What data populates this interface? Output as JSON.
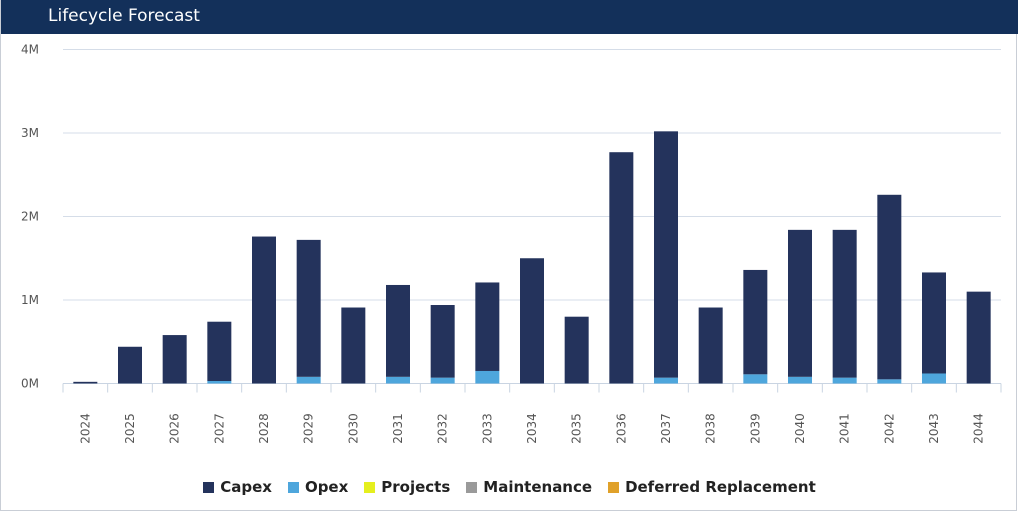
{
  "header": {
    "title": "Lifecycle Forecast"
  },
  "colors": {
    "Capex": "#24335c",
    "Opex": "#4ea6dc",
    "Projects": "#e5ef1e",
    "Maintenance": "#9a9a9a",
    "Deferred Replacement": "#e0a12a"
  },
  "chart_data": {
    "type": "bar",
    "stacked": true,
    "categories": [
      "2024",
      "2025",
      "2026",
      "2027",
      "2028",
      "2029",
      "2030",
      "2031",
      "2032",
      "2033",
      "2034",
      "2035",
      "2036",
      "2037",
      "2038",
      "2039",
      "2040",
      "2041",
      "2042",
      "2043",
      "2044"
    ],
    "series": [
      {
        "name": "Capex",
        "values": [
          0.02,
          0.44,
          0.58,
          0.71,
          1.76,
          1.64,
          0.91,
          1.1,
          0.87,
          1.06,
          1.5,
          0.8,
          2.77,
          2.95,
          0.91,
          1.25,
          1.76,
          1.77,
          2.21,
          1.21,
          1.1
        ]
      },
      {
        "name": "Opex",
        "values": [
          0,
          0,
          0,
          0.03,
          0,
          0.08,
          0,
          0.08,
          0.07,
          0.15,
          0,
          0,
          0,
          0.07,
          0,
          0.11,
          0.08,
          0.07,
          0.05,
          0.12,
          0
        ]
      },
      {
        "name": "Projects",
        "values": [
          0,
          0,
          0,
          0,
          0,
          0,
          0,
          0,
          0,
          0,
          0,
          0,
          0,
          0,
          0,
          0,
          0,
          0,
          0,
          0,
          0
        ]
      },
      {
        "name": "Maintenance",
        "values": [
          0,
          0,
          0,
          0,
          0,
          0,
          0,
          0,
          0,
          0,
          0,
          0,
          0,
          0,
          0,
          0,
          0,
          0,
          0,
          0,
          0
        ]
      },
      {
        "name": "Deferred Replacement",
        "values": [
          0,
          0,
          0,
          0,
          0,
          0,
          0,
          0,
          0,
          0,
          0,
          0,
          0,
          0,
          0,
          0,
          0,
          0,
          0,
          0,
          0
        ]
      }
    ],
    "yticks": [
      "0M",
      "1M",
      "2M",
      "3M",
      "4M"
    ],
    "ylim": [
      0,
      4
    ],
    "grid": true,
    "legend": "bottom-center"
  }
}
